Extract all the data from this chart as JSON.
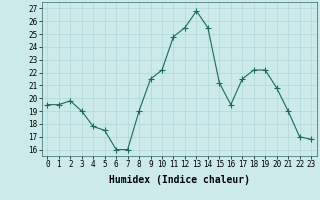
{
  "x": [
    0,
    1,
    2,
    3,
    4,
    5,
    6,
    7,
    8,
    9,
    10,
    11,
    12,
    13,
    14,
    15,
    16,
    17,
    18,
    19,
    20,
    21,
    22,
    23
  ],
  "y": [
    19.5,
    19.5,
    19.8,
    19.0,
    17.8,
    17.5,
    16.0,
    16.0,
    19.0,
    21.5,
    22.2,
    24.8,
    25.5,
    26.8,
    25.5,
    21.2,
    19.5,
    21.5,
    22.2,
    22.2,
    20.8,
    19.0,
    17.0,
    16.8
  ],
  "line_color": "#1a6b5a",
  "marker": "+",
  "markersize": 4,
  "linewidth": 0.8,
  "markeredgewidth": 0.8,
  "xlabel": "Humidex (Indice chaleur)",
  "xlabel_fontsize": 7,
  "ylim": [
    15.5,
    27.5
  ],
  "xlim": [
    -0.5,
    23.5
  ],
  "yticks": [
    16,
    17,
    18,
    19,
    20,
    21,
    22,
    23,
    24,
    25,
    26,
    27
  ],
  "xticks": [
    0,
    1,
    2,
    3,
    4,
    5,
    6,
    7,
    8,
    9,
    10,
    11,
    12,
    13,
    14,
    15,
    16,
    17,
    18,
    19,
    20,
    21,
    22,
    23
  ],
  "xtick_labels": [
    "0",
    "1",
    "2",
    "3",
    "4",
    "5",
    "6",
    "7",
    "8",
    "9",
    "10",
    "11",
    "12",
    "13",
    "14",
    "15",
    "16",
    "17",
    "18",
    "19",
    "20",
    "21",
    "22",
    "23"
  ],
  "grid_color": "#b0d8d8",
  "bg_color": "#cceaea",
  "tick_fontsize": 5.5
}
